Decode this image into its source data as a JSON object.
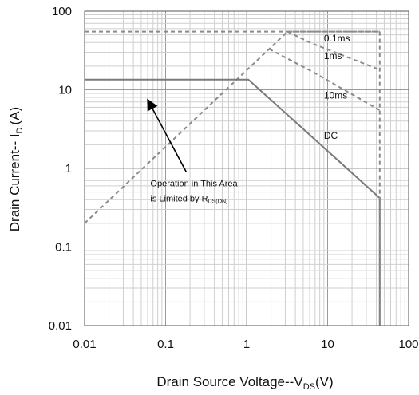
{
  "chart_data": {
    "type": "line",
    "x_scale": "log",
    "y_scale": "log",
    "xlim": [
      0.01,
      100
    ],
    "ylim": [
      0.01,
      100
    ],
    "grid": true,
    "x_ticks": [
      "0.01",
      "0.1",
      "1",
      "10",
      "100"
    ],
    "y_ticks": [
      "100",
      "10",
      "1",
      "0.1",
      "0.01"
    ],
    "xlabel": {
      "main": "Drain Source Voltage--V",
      "sub": "DS",
      "unit": "(V)"
    },
    "ylabel": {
      "main": "Drain Current-- I",
      "sub": "D:",
      "unit": "(A)"
    },
    "series": [
      {
        "name": "0.1ms",
        "style": "dashed",
        "color": "#8a8a8a",
        "x": [
          0.01,
          3.2,
          44
        ],
        "y": [
          0.2,
          55,
          55
        ]
      },
      {
        "name": "1ms",
        "style": "dashed",
        "color": "#8a8a8a",
        "x": [
          3.2,
          6.0,
          44
        ],
        "y": [
          55,
          40,
          18
        ]
      },
      {
        "name": "10ms",
        "style": "dashed",
        "color": "#8a8a8a",
        "x": [
          1.9,
          6.5,
          44
        ],
        "y": [
          33,
          17,
          5.5
        ]
      },
      {
        "name": "DC",
        "style": "solid",
        "color": "#7a7a7a",
        "x": [
          0.01,
          1.05,
          44,
          44
        ],
        "y": [
          13.5,
          13.5,
          0.42,
          0.01
        ]
      },
      {
        "name": "",
        "style": "dashed",
        "color": "#8a8a8a",
        "x": [
          0.01,
          44
        ],
        "y": [
          55,
          55
        ]
      },
      {
        "name": "",
        "style": "dashed",
        "color": "#8a8a8a",
        "x": [
          44,
          44
        ],
        "y": [
          55,
          0.01
        ]
      }
    ],
    "series_labels": [
      {
        "text": "0.1ms",
        "x": 9.0,
        "y": 45
      },
      {
        "text": "1ms",
        "x": 9.0,
        "y": 27
      },
      {
        "text": "10ms",
        "x": 9.0,
        "y": 8.5
      },
      {
        "text": "DC",
        "x": 9.0,
        "y": 2.6
      }
    ],
    "annotation": {
      "line1": "Operation in This Area",
      "line2_prefix": "is Limited by R",
      "line2_sub": "DS(ON)",
      "arrow_from": [
        0.18,
        0.9
      ],
      "arrow_to": [
        0.06,
        7.5
      ]
    }
  }
}
